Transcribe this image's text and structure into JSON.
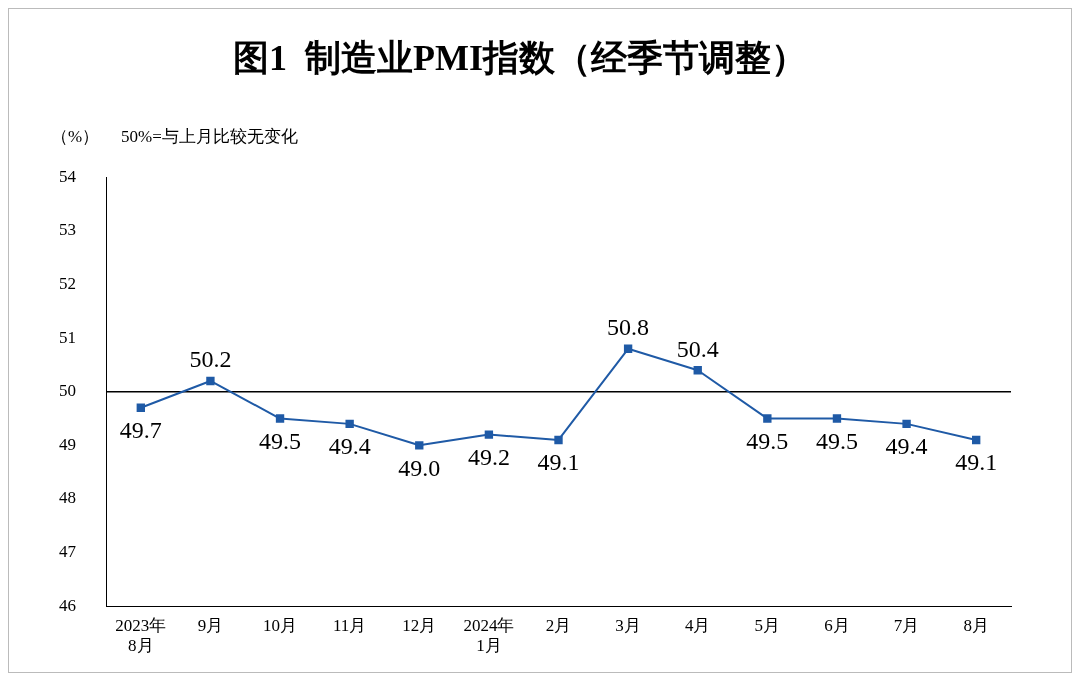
{
  "chart_data": {
    "type": "line",
    "title": "图1  制造业PMI指数（经季节调整）",
    "ylabel": "（%）",
    "annotations": [
      "50%=与上月比较无变化"
    ],
    "categories": [
      "2023年\n8月",
      "9月",
      "10月",
      "11月",
      "12月",
      "2024年\n1月",
      "2月",
      "3月",
      "4月",
      "5月",
      "6月",
      "7月",
      "8月"
    ],
    "series": [
      {
        "color": "#1f5aa6",
        "values": [
          49.7,
          50.2,
          49.5,
          49.4,
          49.0,
          49.2,
          49.1,
          50.8,
          50.4,
          49.5,
          49.5,
          49.4,
          49.1
        ],
        "value_labels": [
          "49.7",
          "50.2",
          "49.5",
          "49.4",
          "49.0",
          "49.2",
          "49.1",
          "50.8",
          "50.4",
          "49.5",
          "49.5",
          "49.4",
          "49.1"
        ]
      }
    ],
    "ylim": [
      46,
      54
    ],
    "yticks": [
      46,
      47,
      48,
      49,
      50,
      51,
      52,
      53,
      54
    ],
    "grid": false,
    "legend": false,
    "marker": "square",
    "line_style": "solid",
    "data_labels": true,
    "ref_lines": [
      {
        "axis": "y",
        "value": 50,
        "color": "#000000"
      }
    ]
  }
}
